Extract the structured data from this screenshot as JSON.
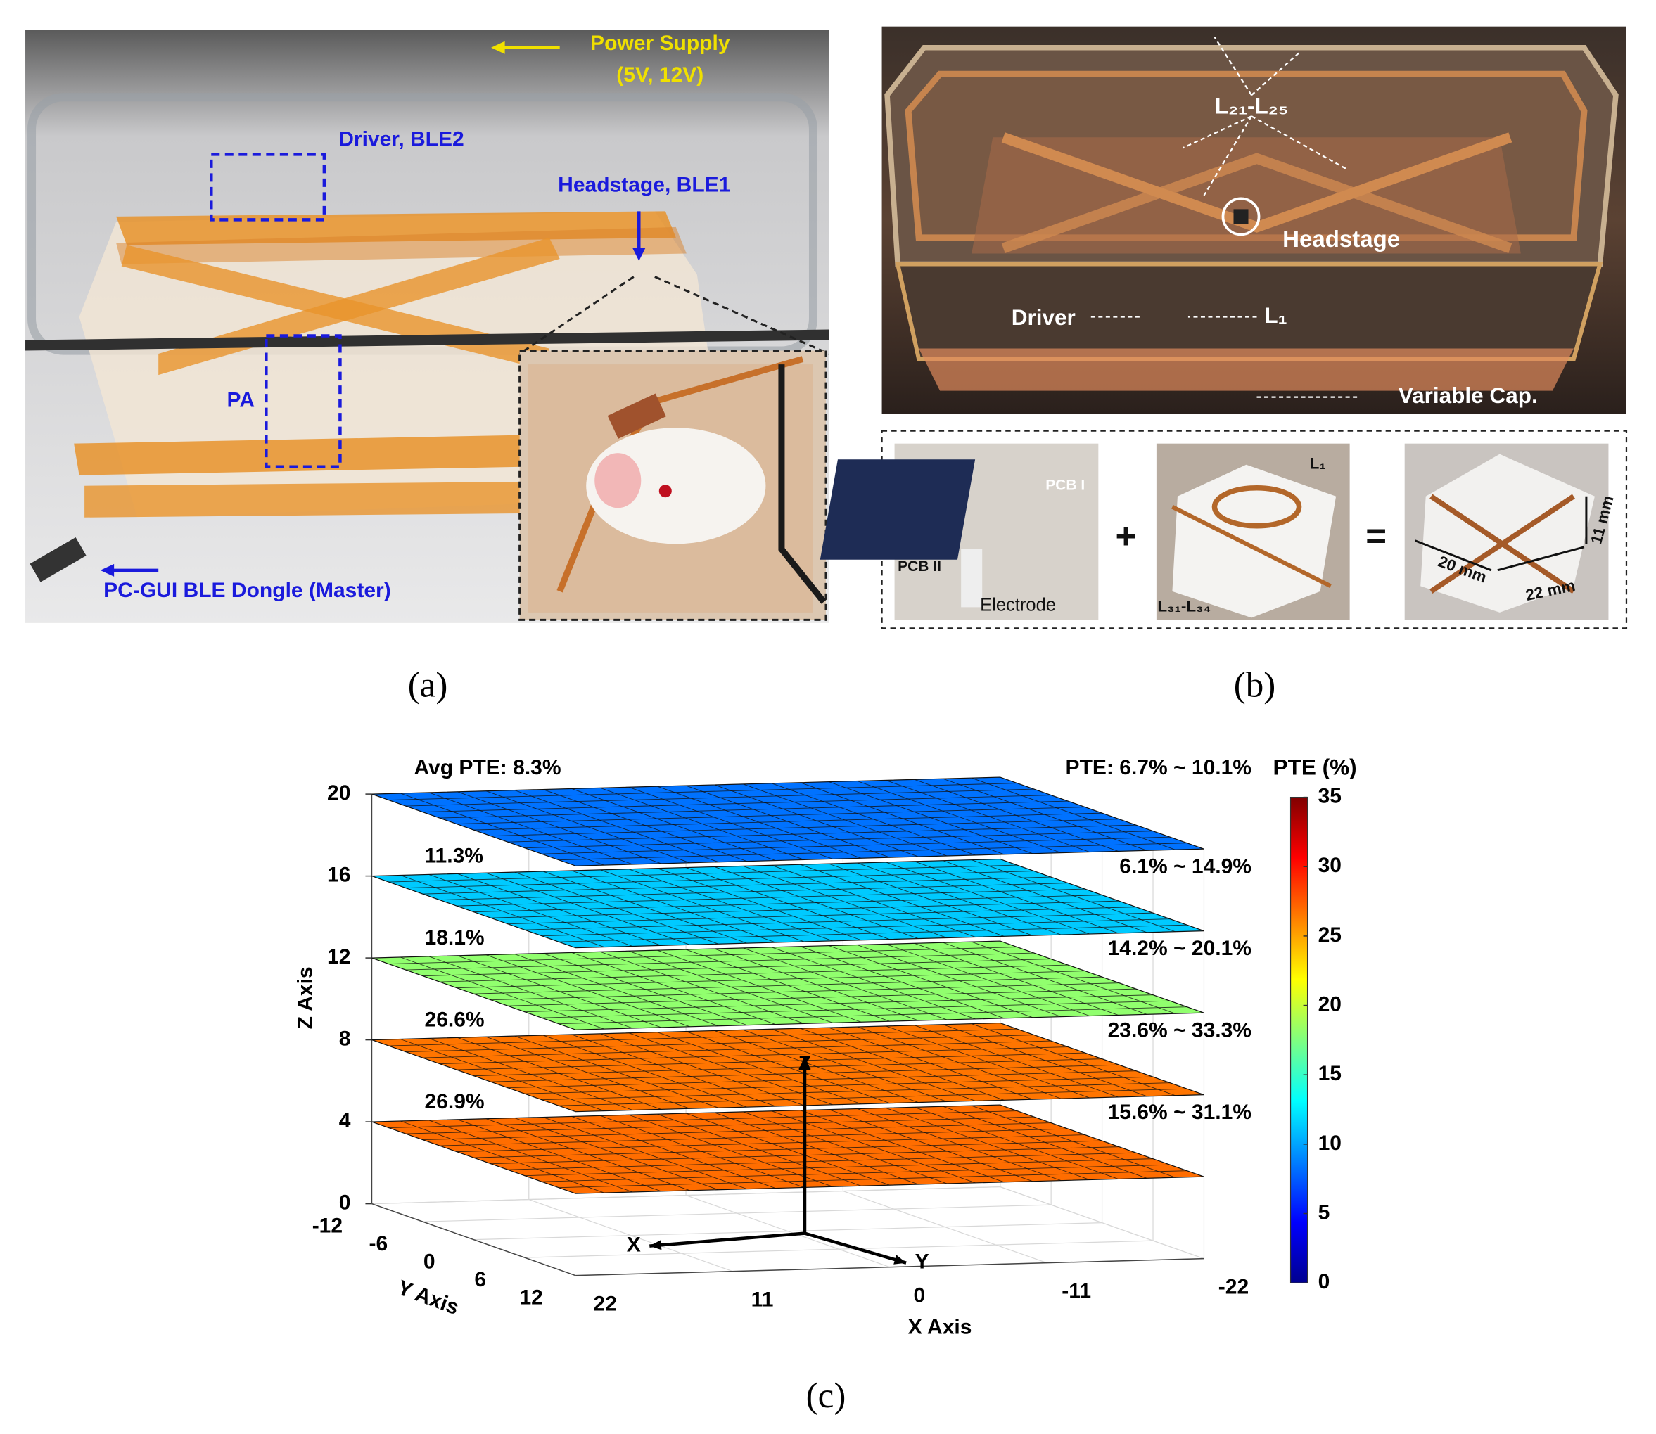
{
  "panel_a": {
    "label": "(a)",
    "annotations": {
      "power_supply": "Power Supply",
      "voltages": "(5V, 12V)",
      "driver": "Driver, BLE2",
      "headstage": "Headstage, BLE1",
      "pa": "PA",
      "dongle": "PC-GUI BLE Dongle (Master)"
    }
  },
  "panel_b": {
    "label": "(b)",
    "annotations": {
      "l21_l25": "L₂₁-L₂₅",
      "headstage": "Headstage",
      "driver": "Driver",
      "l1": "L₁",
      "variable_cap": "Variable Cap."
    },
    "parts": {
      "pcb1": "PCB I",
      "pcb2": "PCB II",
      "electrode": "Electrode",
      "plus": "+",
      "l1": "L₁",
      "l31_l34": "L₃₁-L₃₄",
      "equals": "=",
      "dim_20": "20 mm",
      "dim_22": "22 mm",
      "dim_11": "11 mm"
    }
  },
  "panel_c": {
    "label": "(c)",
    "type": "surface-layers",
    "zlabel": "Z Axis",
    "ylabel": "Y Axis",
    "xlabel": "X Axis",
    "xlim": [
      22,
      -22
    ],
    "xticks": [
      22,
      11,
      0,
      -11,
      -22
    ],
    "ylim": [
      -12,
      12
    ],
    "yticks": [
      -12,
      -6,
      0,
      6,
      12
    ],
    "zlim": [
      0,
      20
    ],
    "zticks": [
      0,
      4,
      8,
      12,
      16,
      20
    ],
    "colorbar": {
      "title": "PTE (%)",
      "clim": [
        0,
        35
      ],
      "ticks": [
        0,
        5,
        10,
        15,
        20,
        25,
        30,
        35
      ],
      "colormap": "jet"
    },
    "inner_axes": {
      "x": "X",
      "y": "Y",
      "z": "Z"
    },
    "layers": [
      {
        "z": 20,
        "avg": 8.3,
        "avg_label": "Avg PTE: 8.3%",
        "range_label": "PTE: 6.7% ~ 10.1%"
      },
      {
        "z": 16,
        "avg": 11.3,
        "avg_label": "11.3%",
        "range_label": "6.1% ~ 14.9%"
      },
      {
        "z": 12,
        "avg": 18.1,
        "avg_label": "18.1%",
        "range_label": "14.2% ~ 20.1%"
      },
      {
        "z": 8,
        "avg": 26.6,
        "avg_label": "26.6%",
        "range_label": "23.6% ~ 33.3%"
      },
      {
        "z": 4,
        "avg": 26.9,
        "avg_label": "26.9%",
        "range_label": "15.6% ~ 31.1%"
      }
    ]
  }
}
